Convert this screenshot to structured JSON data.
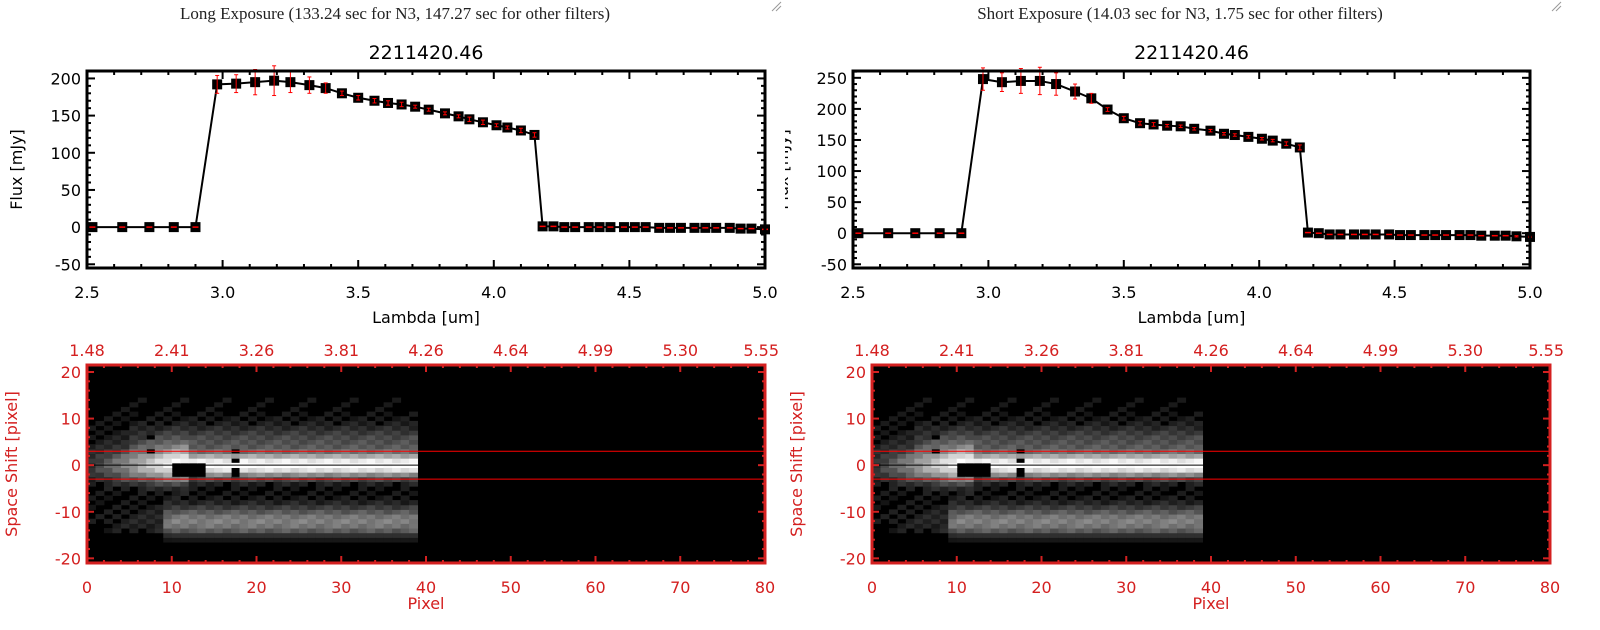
{
  "panels": [
    {
      "title": "Long Exposure (133.24 sec for N3, 147.27 sec for other filters)",
      "spectrum": {
        "type": "line",
        "title": "2211420.46",
        "xlabel": "Lambda [um]",
        "ylabel": "Flux [mJy]",
        "xlim": [
          2.5,
          5.0
        ],
        "ylim": [
          -55,
          210
        ],
        "xticks": [
          "2.5",
          "3.0",
          "3.5",
          "4.0",
          "4.5",
          "5.0"
        ],
        "yticks": [
          "-50",
          "0",
          "50",
          "100",
          "150",
          "200"
        ],
        "x": [
          2.52,
          2.63,
          2.73,
          2.82,
          2.9,
          2.98,
          3.05,
          3.12,
          3.19,
          3.25,
          3.32,
          3.38,
          3.44,
          3.5,
          3.56,
          3.61,
          3.66,
          3.71,
          3.76,
          3.82,
          3.87,
          3.91,
          3.96,
          4.01,
          4.05,
          4.1,
          4.15,
          4.18,
          4.22,
          4.26,
          4.3,
          4.35,
          4.39,
          4.43,
          4.48,
          4.52,
          4.56,
          4.61,
          4.65,
          4.69,
          4.74,
          4.78,
          4.82,
          4.87,
          4.91,
          4.95,
          5.0
        ],
        "y": [
          0,
          0,
          0,
          0,
          0,
          192,
          193,
          195,
          197,
          195,
          191,
          187,
          180,
          174,
          170,
          167,
          165,
          162,
          158,
          153,
          149,
          145,
          141,
          137,
          134,
          130,
          124,
          1,
          1,
          0,
          0,
          0,
          0,
          0,
          0,
          0,
          0,
          -1,
          -1,
          -1,
          -1,
          -1,
          -1,
          -1,
          -2,
          -2,
          -3
        ],
        "yerr": [
          0,
          0,
          0,
          0,
          0,
          12,
          12,
          17,
          20,
          14,
          11,
          7,
          3,
          3,
          3,
          3,
          3,
          2,
          2,
          2,
          2,
          3,
          3,
          2,
          2,
          3,
          3,
          0,
          0,
          0,
          0,
          0,
          0,
          0,
          0,
          0,
          0,
          0,
          0,
          0,
          0,
          0,
          0,
          0,
          0,
          0,
          0
        ],
        "colors": {
          "line": "#000000",
          "errorbar": "#ff0000"
        }
      },
      "image": {
        "type": "heatmap",
        "xlabel": "Pixel",
        "ylabel": "Space Shift [pixel]",
        "xlim": [
          0,
          80
        ],
        "ylim": [
          -21,
          21.5
        ],
        "xticks": [
          "0",
          "10",
          "20",
          "30",
          "40",
          "50",
          "60",
          "70",
          "80"
        ],
        "yticks": [
          "-20",
          "-10",
          "0",
          "10",
          "20"
        ],
        "top_ticks": [
          "1.48",
          "2.41",
          "3.26",
          "3.81",
          "4.26",
          "4.64",
          "4.99",
          "5.30",
          "5.55"
        ],
        "aperture": [
          -3,
          3
        ],
        "colors": {
          "axis": "#d42020",
          "aperture": "#ff0000"
        }
      }
    },
    {
      "title": "Short Exposure (14.03 sec for N3, 1.75 sec for other filters)",
      "spectrum": {
        "type": "line",
        "title": "2211420.46",
        "xlabel": "Lambda [um]",
        "ylabel": "Flux [mJy]",
        "xlim": [
          2.5,
          5.0
        ],
        "ylim": [
          -56,
          261
        ],
        "xticks": [
          "2.5",
          "3.0",
          "3.5",
          "4.0",
          "4.5",
          "5.0"
        ],
        "yticks": [
          "-50",
          "0",
          "50",
          "100",
          "150",
          "200",
          "250"
        ],
        "x": [
          2.52,
          2.63,
          2.73,
          2.82,
          2.9,
          2.98,
          3.05,
          3.12,
          3.19,
          3.25,
          3.32,
          3.38,
          3.44,
          3.5,
          3.56,
          3.61,
          3.66,
          3.71,
          3.76,
          3.82,
          3.87,
          3.91,
          3.96,
          4.01,
          4.05,
          4.1,
          4.15,
          4.18,
          4.22,
          4.26,
          4.3,
          4.35,
          4.39,
          4.43,
          4.48,
          4.52,
          4.56,
          4.61,
          4.65,
          4.69,
          4.74,
          4.78,
          4.82,
          4.87,
          4.91,
          4.95,
          5.0
        ],
        "y": [
          0,
          0,
          0,
          0,
          0,
          248,
          243,
          245,
          245,
          240,
          228,
          217,
          199,
          185,
          177,
          175,
          173,
          172,
          168,
          165,
          160,
          158,
          155,
          152,
          149,
          144,
          138,
          1,
          0,
          -2,
          -2,
          -2,
          -2,
          -2,
          -2,
          -3,
          -3,
          -3,
          -3,
          -3,
          -3,
          -3,
          -4,
          -4,
          -4,
          -5,
          -6
        ],
        "yerr": [
          0,
          0,
          0,
          0,
          0,
          18,
          15,
          20,
          22,
          18,
          12,
          8,
          3,
          3,
          3,
          3,
          2,
          2,
          2,
          2,
          2,
          2,
          2,
          2,
          2,
          3,
          4,
          0,
          0,
          0,
          0,
          0,
          0,
          0,
          0,
          0,
          0,
          0,
          0,
          0,
          0,
          0,
          0,
          0,
          0,
          1,
          1
        ],
        "colors": {
          "line": "#000000",
          "errorbar": "#ff0000"
        }
      },
      "image": {
        "type": "heatmap",
        "xlabel": "Pixel",
        "ylabel": "Space Shift [pixel]",
        "xlim": [
          0,
          80
        ],
        "ylim": [
          -21,
          21.5
        ],
        "xticks": [
          "0",
          "10",
          "20",
          "30",
          "40",
          "50",
          "60",
          "70",
          "80"
        ],
        "yticks": [
          "-20",
          "-10",
          "0",
          "10",
          "20"
        ],
        "top_ticks": [
          "1.48",
          "2.41",
          "3.26",
          "3.81",
          "4.26",
          "4.64",
          "4.99",
          "5.30",
          "5.55"
        ],
        "aperture": [
          -3,
          3
        ],
        "colors": {
          "axis": "#d42020",
          "aperture": "#ff0000"
        }
      }
    }
  ],
  "chart_data": [
    {
      "ref": "panels.0.spectrum"
    },
    {
      "ref": "panels.1.spectrum"
    }
  ]
}
